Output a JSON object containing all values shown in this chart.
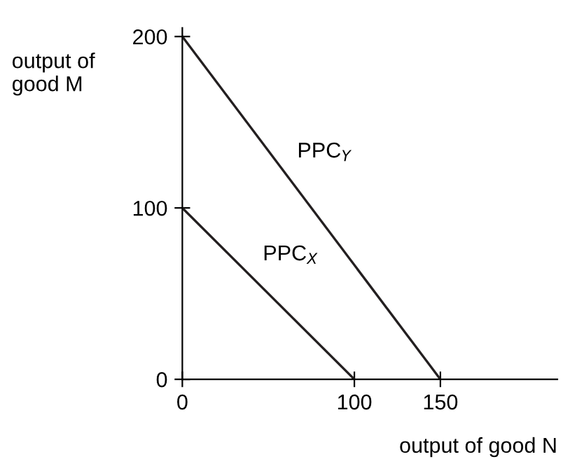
{
  "chart_data": {
    "type": "line",
    "xlabel": "output of good N",
    "ylabel": "output of\ngood M",
    "series": [
      {
        "name": "PPC$_{X}$",
        "color": "#231f20",
        "x": [
          0,
          100
        ],
        "values": [
          100,
          0
        ]
      },
      {
        "name": "PPC$_{Y}$",
        "color": "#231f20",
        "x": [
          0,
          150
        ],
        "values": [
          200,
          0
        ]
      }
    ],
    "xlim": [
      0,
      218
    ],
    "ylim": [
      0,
      205
    ],
    "xticks": [
      0,
      100,
      150
    ],
    "yticks": [
      0,
      100,
      200
    ],
    "grid": false,
    "legend": false,
    "marker": "none",
    "line_style": "solid"
  }
}
